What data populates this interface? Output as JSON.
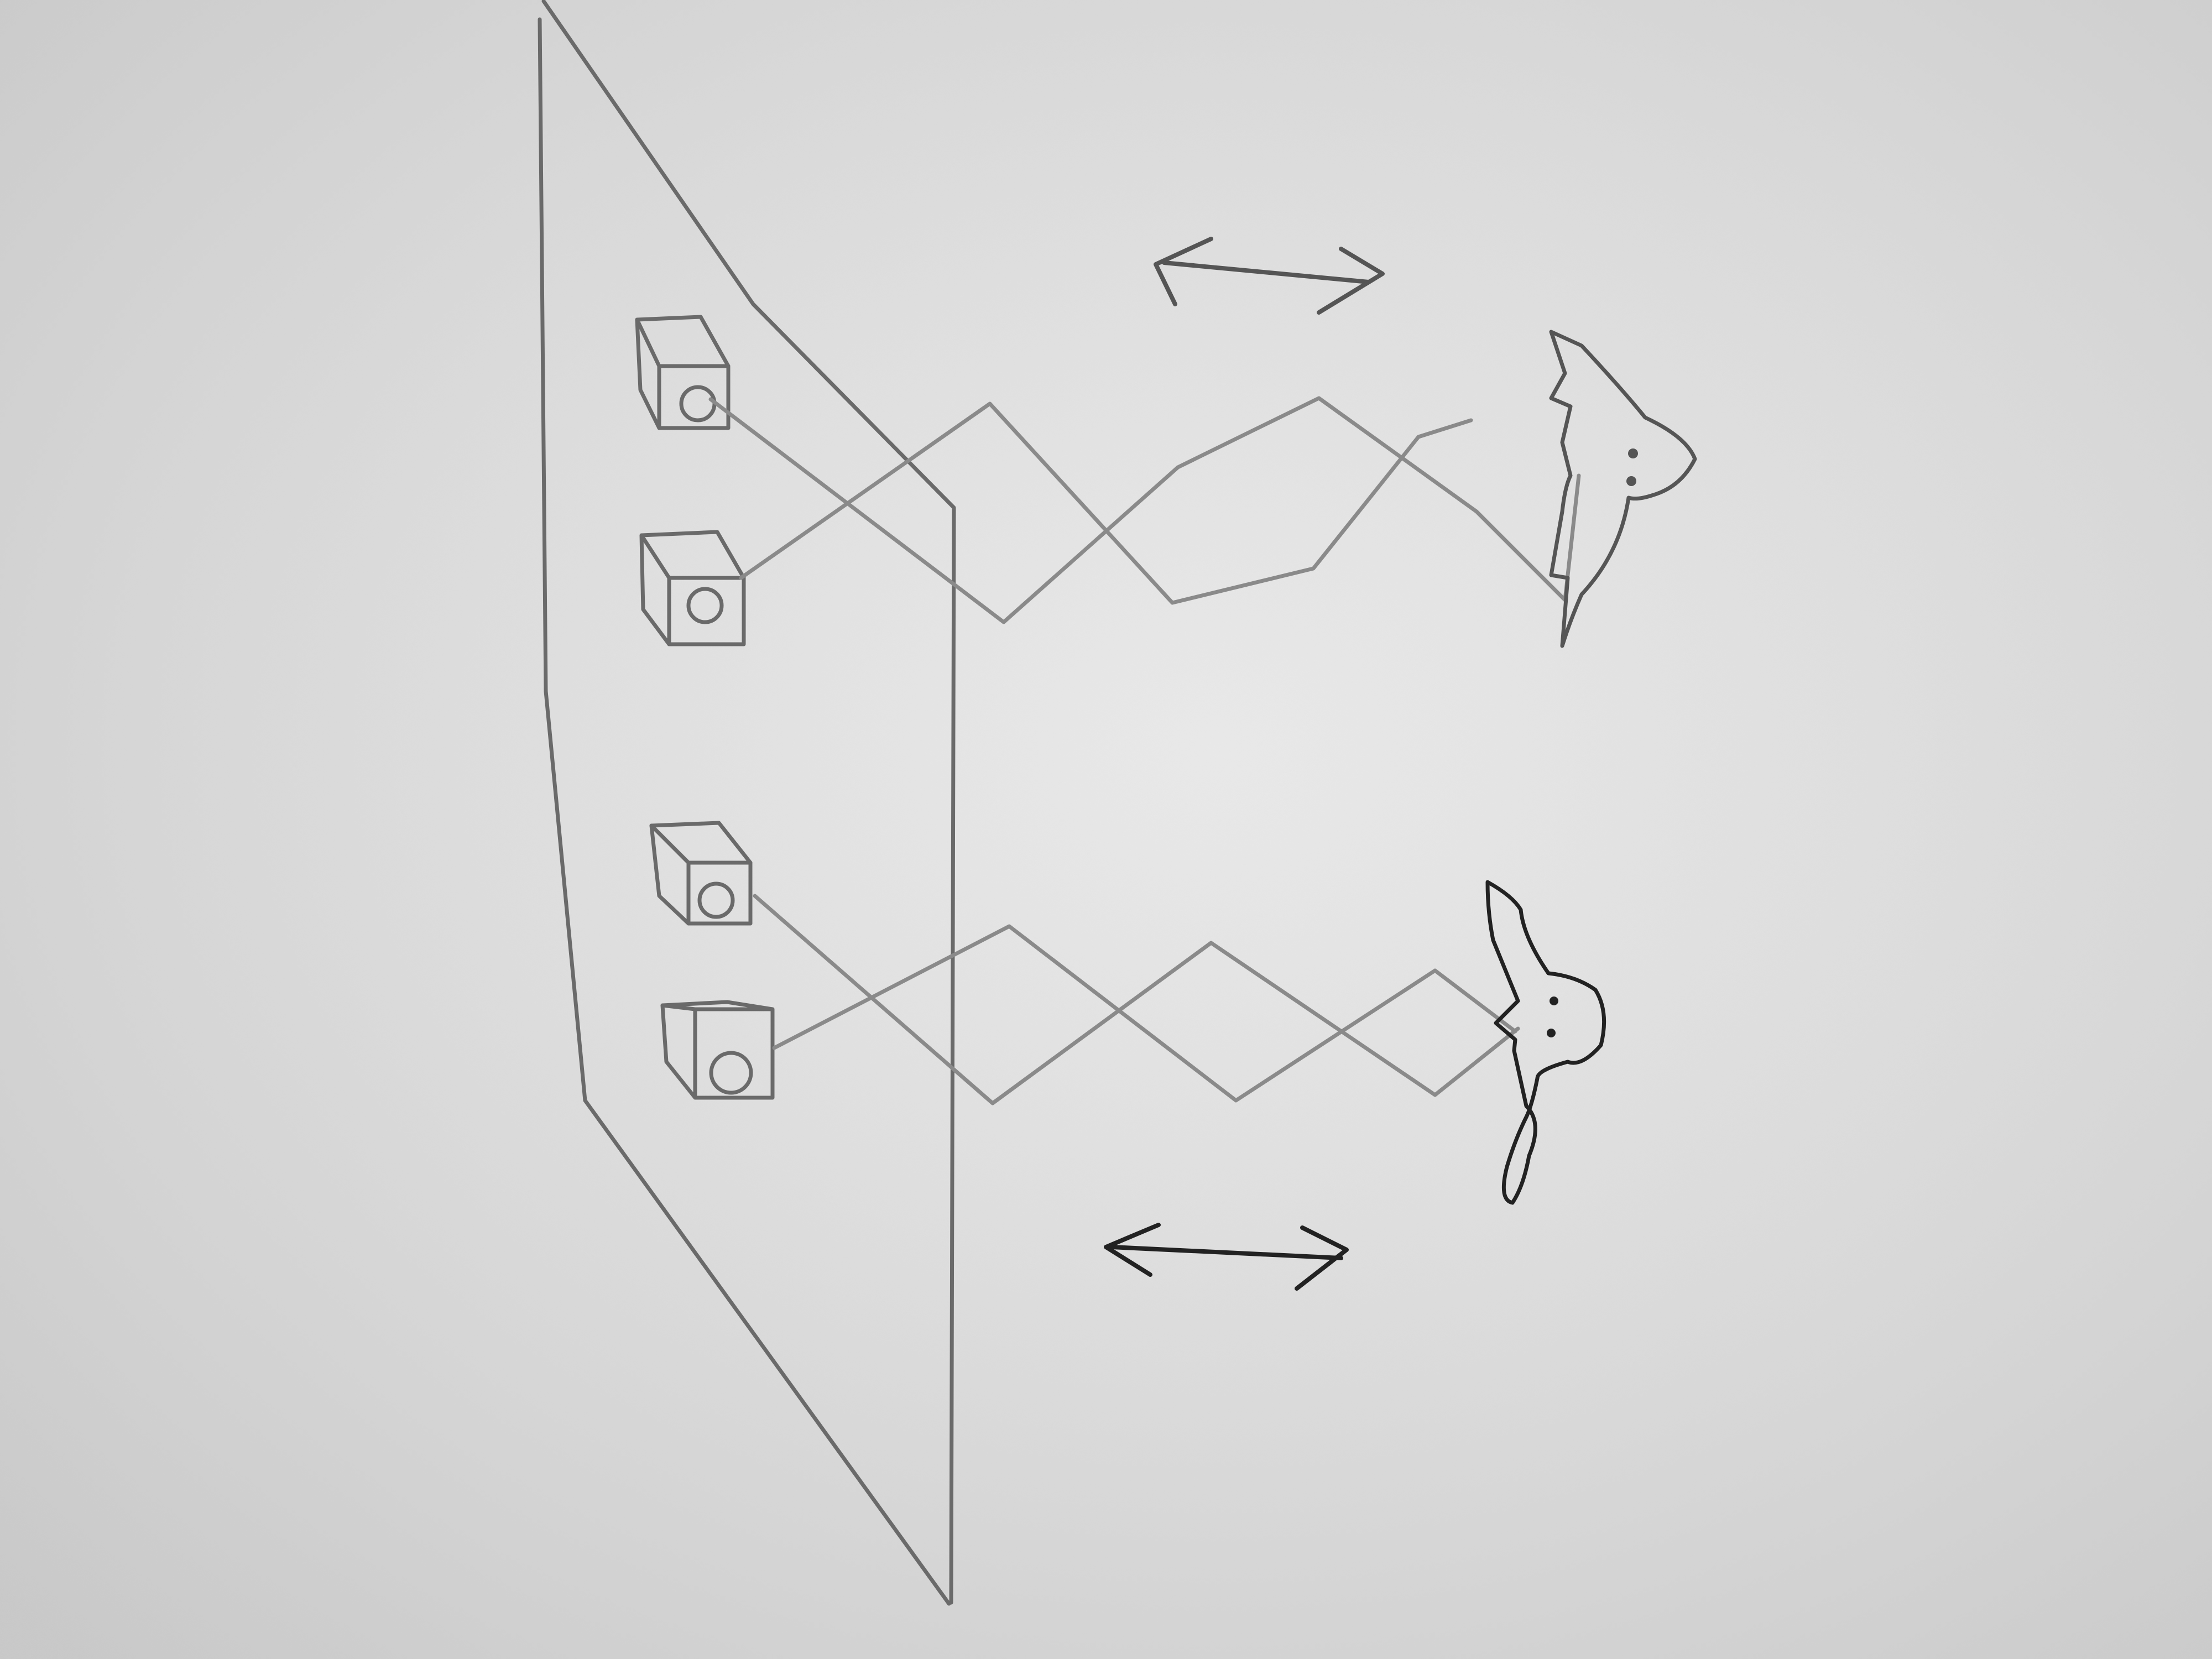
{
  "colors": {
    "paper": "#e3e3e3",
    "pencil": "#6a6a6a",
    "pencil_light": "#8a8a8a",
    "ink": "#222222"
  },
  "icons": [
    "speaker-icon",
    "bat-icon",
    "double-arrow-icon"
  ],
  "groups": [
    {
      "name": "upper-group",
      "speakers": 2,
      "bat": "bat-upper"
    },
    {
      "name": "lower-group",
      "speakers": 2,
      "bat": "bat-lower"
    }
  ]
}
